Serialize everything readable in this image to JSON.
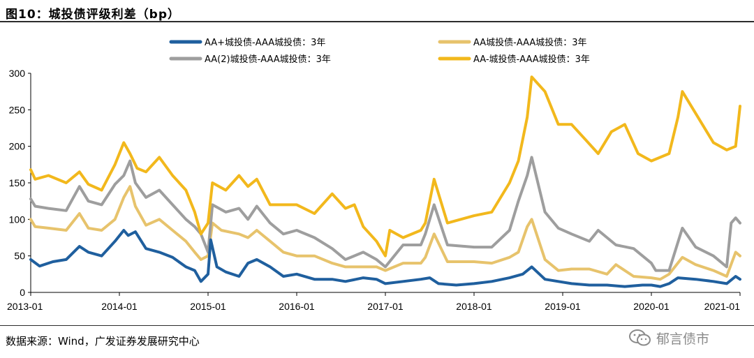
{
  "header": {
    "title": "图10：城投债评级利差（bp）"
  },
  "footer": {
    "source": "数据来源：Wind，广发证券发展研究中心"
  },
  "watermark": {
    "text": "郁言债市",
    "icon": "wechat-icon"
  },
  "chart_data": {
    "type": "line",
    "title": "图10：城投债评级利差（bp）",
    "xlabel": "",
    "ylabel": "",
    "ylim": [
      0,
      300
    ],
    "yticks": [
      0,
      50,
      100,
      150,
      200,
      250,
      300
    ],
    "xlim": [
      2013.0,
      2021.0
    ],
    "xticks": [
      {
        "label": "2013-01",
        "x": 2013.0
      },
      {
        "label": "2014-01",
        "x": 2014.0
      },
      {
        "label": "2015-01",
        "x": 2015.0
      },
      {
        "label": "2016-01",
        "x": 2016.0
      },
      {
        "label": "2017-01",
        "x": 2017.0
      },
      {
        "label": "2018-01",
        "x": 2018.0
      },
      {
        "label": "2019-01",
        "x": 2019.0
      },
      {
        "label": "2020-01",
        "x": 2020.0
      },
      {
        "label": "2021-01",
        "x": 2021.0
      }
    ],
    "grid": false,
    "legend_position": "top",
    "series": [
      {
        "name": "AA+城投债-AAA城投债：3年",
        "color": "#1f5f9e",
        "x": [
          2013.0,
          2013.1,
          2013.25,
          2013.4,
          2013.55,
          2013.65,
          2013.8,
          2013.95,
          2014.05,
          2014.1,
          2014.18,
          2014.3,
          2014.45,
          2014.6,
          2014.75,
          2014.85,
          2014.92,
          2015.0,
          2015.03,
          2015.1,
          2015.2,
          2015.35,
          2015.45,
          2015.55,
          2015.7,
          2015.85,
          2016.0,
          2016.2,
          2016.4,
          2016.55,
          2016.75,
          2016.9,
          2017.0,
          2017.2,
          2017.4,
          2017.5,
          2017.6,
          2017.8,
          2018.0,
          2018.2,
          2018.4,
          2018.55,
          2018.65,
          2018.8,
          2018.95,
          2019.1,
          2019.3,
          2019.5,
          2019.7,
          2019.9,
          2020.0,
          2020.1,
          2020.2,
          2020.3,
          2020.5,
          2020.7,
          2020.85,
          2020.95,
          2021.0
        ],
        "y": [
          45,
          36,
          42,
          45,
          63,
          55,
          50,
          70,
          85,
          78,
          83,
          60,
          55,
          48,
          35,
          30,
          15,
          25,
          72,
          35,
          28,
          22,
          40,
          45,
          35,
          22,
          25,
          18,
          18,
          15,
          20,
          18,
          12,
          15,
          18,
          20,
          12,
          10,
          12,
          15,
          20,
          25,
          35,
          18,
          15,
          12,
          10,
          10,
          8,
          10,
          10,
          8,
          12,
          20,
          18,
          15,
          12,
          22,
          18
        ]
      },
      {
        "name": "AA城投债-AAA城投债：3年",
        "color": "#e7c36c",
        "x": [
          2013.0,
          2013.05,
          2013.2,
          2013.4,
          2013.55,
          2013.65,
          2013.8,
          2013.95,
          2014.05,
          2014.12,
          2014.18,
          2014.3,
          2014.45,
          2014.6,
          2014.75,
          2014.85,
          2014.92,
          2015.0,
          2015.05,
          2015.15,
          2015.35,
          2015.45,
          2015.55,
          2015.7,
          2015.85,
          2016.0,
          2016.2,
          2016.4,
          2016.55,
          2016.75,
          2016.9,
          2017.0,
          2017.2,
          2017.4,
          2017.45,
          2017.55,
          2017.7,
          2018.0,
          2018.2,
          2018.4,
          2018.5,
          2018.6,
          2018.65,
          2018.8,
          2018.95,
          2019.1,
          2019.3,
          2019.5,
          2019.6,
          2019.8,
          2020.0,
          2020.1,
          2020.2,
          2020.35,
          2020.5,
          2020.7,
          2020.85,
          2020.95,
          2021.0
        ],
        "y": [
          100,
          90,
          88,
          85,
          108,
          88,
          85,
          100,
          130,
          145,
          118,
          92,
          100,
          85,
          70,
          55,
          45,
          50,
          95,
          85,
          80,
          75,
          85,
          70,
          55,
          50,
          50,
          40,
          35,
          35,
          35,
          30,
          40,
          40,
          48,
          80,
          42,
          42,
          40,
          48,
          55,
          90,
          100,
          45,
          30,
          32,
          32,
          25,
          38,
          22,
          20,
          18,
          25,
          48,
          38,
          30,
          22,
          55,
          50
        ]
      },
      {
        "name": "AA(2)城投债-AAA城投债：3年",
        "color": "#9e9e9e",
        "x": [
          2013.0,
          2013.05,
          2013.2,
          2013.4,
          2013.55,
          2013.65,
          2013.8,
          2013.95,
          2014.05,
          2014.12,
          2014.18,
          2014.3,
          2014.45,
          2014.6,
          2014.75,
          2014.85,
          2014.92,
          2015.0,
          2015.05,
          2015.2,
          2015.35,
          2015.45,
          2015.55,
          2015.7,
          2015.85,
          2016.0,
          2016.2,
          2016.4,
          2016.55,
          2016.75,
          2016.9,
          2017.0,
          2017.2,
          2017.4,
          2017.45,
          2017.55,
          2017.7,
          2018.0,
          2018.2,
          2018.4,
          2018.5,
          2018.6,
          2018.65,
          2018.8,
          2018.95,
          2019.1,
          2019.3,
          2019.4,
          2019.6,
          2019.8,
          2020.0,
          2020.05,
          2020.2,
          2020.35,
          2020.5,
          2020.7,
          2020.85,
          2020.9,
          2020.95,
          2021.0
        ],
        "y": [
          128,
          118,
          115,
          112,
          145,
          125,
          120,
          148,
          160,
          180,
          150,
          130,
          140,
          120,
          100,
          90,
          80,
          55,
          120,
          110,
          115,
          100,
          118,
          95,
          80,
          85,
          75,
          60,
          45,
          55,
          45,
          35,
          65,
          65,
          80,
          120,
          65,
          62,
          62,
          85,
          125,
          160,
          185,
          110,
          88,
          80,
          70,
          85,
          65,
          60,
          40,
          30,
          30,
          88,
          62,
          50,
          35,
          95,
          102,
          95
        ]
      },
      {
        "name": "AA-城投债-AAA城投债：3年",
        "color": "#f2b81c",
        "x": [
          2013.0,
          2013.05,
          2013.2,
          2013.4,
          2013.55,
          2013.65,
          2013.8,
          2013.95,
          2014.05,
          2014.12,
          2014.2,
          2014.3,
          2014.45,
          2014.6,
          2014.75,
          2014.85,
          2014.92,
          2015.0,
          2015.05,
          2015.2,
          2015.35,
          2015.45,
          2015.55,
          2015.7,
          2015.85,
          2016.0,
          2016.2,
          2016.4,
          2016.55,
          2016.65,
          2016.75,
          2016.9,
          2017.0,
          2017.05,
          2017.2,
          2017.4,
          2017.45,
          2017.55,
          2017.7,
          2018.0,
          2018.2,
          2018.4,
          2018.5,
          2018.6,
          2018.65,
          2018.8,
          2018.95,
          2019.1,
          2019.25,
          2019.4,
          2019.55,
          2019.7,
          2019.85,
          2020.0,
          2020.2,
          2020.3,
          2020.35,
          2020.5,
          2020.7,
          2020.85,
          2020.95,
          2021.0
        ],
        "y": [
          168,
          155,
          160,
          150,
          165,
          148,
          140,
          175,
          205,
          190,
          170,
          165,
          185,
          160,
          140,
          110,
          80,
          95,
          150,
          140,
          160,
          145,
          155,
          120,
          120,
          120,
          108,
          135,
          115,
          120,
          90,
          70,
          50,
          85,
          75,
          85,
          95,
          155,
          95,
          105,
          110,
          150,
          180,
          240,
          295,
          275,
          230,
          230,
          210,
          190,
          220,
          230,
          190,
          180,
          190,
          240,
          275,
          245,
          205,
          195,
          200,
          255
        ]
      }
    ]
  }
}
